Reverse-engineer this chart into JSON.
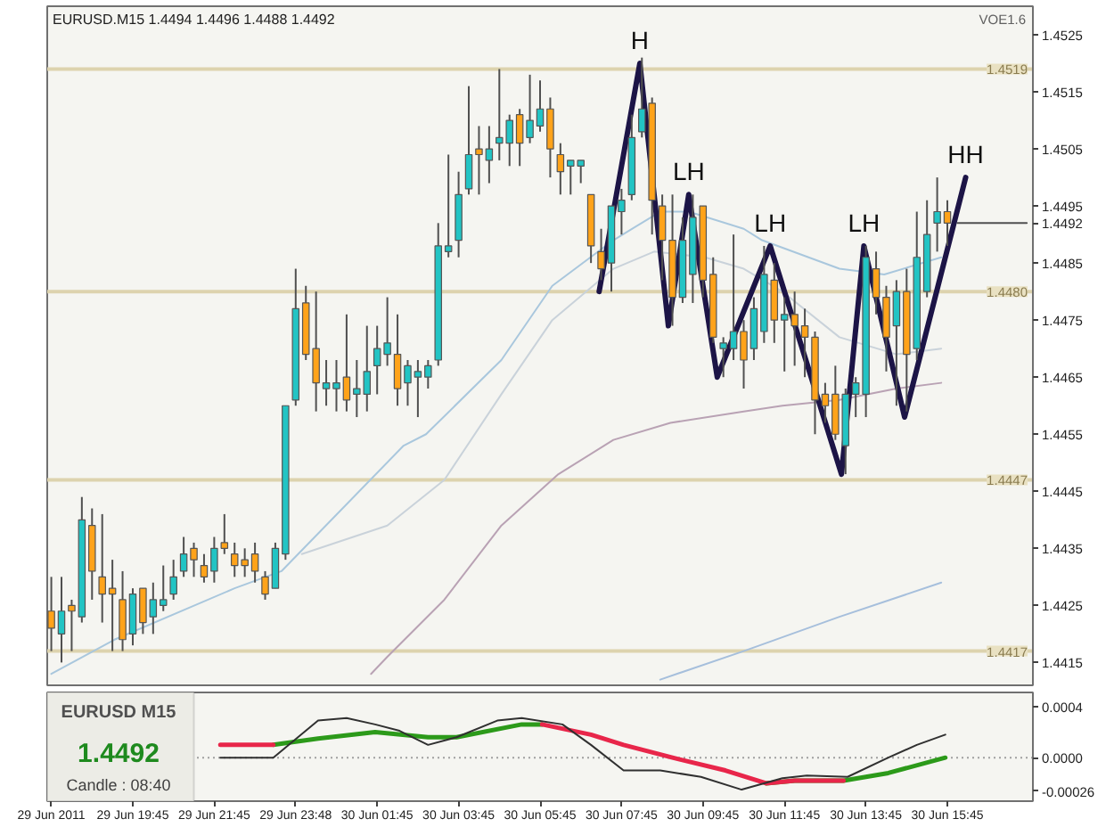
{
  "chart_data": [
    {
      "type": "candlestick",
      "title": "EURUSD.M15 1.4494 1.4496 1.4488 1.4492",
      "x": [
        "2011-06-29T17:45",
        "2011-06-29T18:00",
        "2011-06-29T18:15",
        "2011-06-29T18:30",
        "2011-06-29T18:45",
        "2011-06-29T19:00",
        "2011-06-29T19:15",
        "2011-06-29T19:30",
        "2011-06-29T19:45",
        "2011-06-29T20:00",
        "2011-06-29T20:15",
        "2011-06-29T20:30",
        "2011-06-29T20:45",
        "2011-06-29T21:00",
        "2011-06-29T21:15",
        "2011-06-29T21:30",
        "2011-06-29T21:45",
        "2011-06-29T22:00",
        "2011-06-29T22:15",
        "2011-06-29T22:30",
        "2011-06-29T22:45",
        "2011-06-29T23:00",
        "2011-06-29T23:15",
        "2011-06-29T23:30",
        "2011-06-29T23:45",
        "2011-06-30T00:00",
        "2011-06-30T00:15",
        "2011-06-30T00:30",
        "2011-06-30T00:45",
        "2011-06-30T01:00",
        "2011-06-30T01:15",
        "2011-06-30T01:30",
        "2011-06-30T01:45",
        "2011-06-30T02:00",
        "2011-06-30T02:15",
        "2011-06-30T02:30",
        "2011-06-30T02:45",
        "2011-06-30T03:00",
        "2011-06-30T03:15",
        "2011-06-30T03:30",
        "2011-06-30T03:45",
        "2011-06-30T04:00",
        "2011-06-30T04:15",
        "2011-06-30T04:30",
        "2011-06-30T04:45",
        "2011-06-30T05:00",
        "2011-06-30T05:15",
        "2011-06-30T05:30",
        "2011-06-30T05:45",
        "2011-06-30T06:00",
        "2011-06-30T06:15",
        "2011-06-30T06:30",
        "2011-06-30T06:45",
        "2011-06-30T07:00",
        "2011-06-30T07:15",
        "2011-06-30T07:30",
        "2011-06-30T07:45",
        "2011-06-30T08:00",
        "2011-06-30T08:15",
        "2011-06-30T08:30",
        "2011-06-30T08:45",
        "2011-06-30T09:00",
        "2011-06-30T09:15",
        "2011-06-30T09:30",
        "2011-06-30T09:45",
        "2011-06-30T10:00",
        "2011-06-30T10:15",
        "2011-06-30T10:30",
        "2011-06-30T10:45",
        "2011-06-30T11:00",
        "2011-06-30T11:15",
        "2011-06-30T11:30",
        "2011-06-30T11:45",
        "2011-06-30T12:00",
        "2011-06-30T12:15",
        "2011-06-30T12:30",
        "2011-06-30T12:45",
        "2011-06-30T13:00",
        "2011-06-30T13:15",
        "2011-06-30T13:30",
        "2011-06-30T13:45",
        "2011-06-30T14:00",
        "2011-06-30T14:15",
        "2011-06-30T14:30",
        "2011-06-30T14:45",
        "2011-06-30T15:00",
        "2011-06-30T15:15",
        "2011-06-30T15:30",
        "2011-06-30T15:45"
      ],
      "ohlc": [
        [
          1.4424,
          1.443,
          1.4417,
          1.4421
        ],
        [
          1.442,
          1.443,
          1.4415,
          1.4424
        ],
        [
          1.4425,
          1.4426,
          1.4417,
          1.4424
        ],
        [
          1.4423,
          1.4444,
          1.4422,
          1.444
        ],
        [
          1.4439,
          1.4442,
          1.4426,
          1.4431
        ],
        [
          1.443,
          1.4441,
          1.4422,
          1.4427
        ],
        [
          1.4428,
          1.4433,
          1.4417,
          1.4427
        ],
        [
          1.4426,
          1.4431,
          1.4417,
          1.4419
        ],
        [
          1.442,
          1.4428,
          1.4418,
          1.4427
        ],
        [
          1.4428,
          1.4428,
          1.442,
          1.4422
        ],
        [
          1.4423,
          1.4429,
          1.442,
          1.4426
        ],
        [
          1.4425,
          1.4432,
          1.4424,
          1.4426
        ],
        [
          1.4427,
          1.4433,
          1.4426,
          1.443
        ],
        [
          1.4431,
          1.4437,
          1.443,
          1.4434
        ],
        [
          1.4435,
          1.4436,
          1.443,
          1.4433
        ],
        [
          1.4432,
          1.4434,
          1.4429,
          1.443
        ],
        [
          1.4431,
          1.4437,
          1.4429,
          1.4435
        ],
        [
          1.4436,
          1.4441,
          1.4434,
          1.4435
        ],
        [
          1.4434,
          1.4436,
          1.443,
          1.4432
        ],
        [
          1.4433,
          1.4435,
          1.443,
          1.4432
        ],
        [
          1.4434,
          1.4436,
          1.4429,
          1.4431
        ],
        [
          1.443,
          1.4431,
          1.4426,
          1.4427
        ],
        [
          1.4428,
          1.4436,
          1.4428,
          1.4435
        ],
        [
          1.4434,
          1.446,
          1.4433,
          1.446
        ],
        [
          1.4461,
          1.4484,
          1.446,
          1.4477
        ],
        [
          1.4478,
          1.4481,
          1.4468,
          1.4469
        ],
        [
          1.447,
          1.448,
          1.4459,
          1.4464
        ],
        [
          1.4463,
          1.4468,
          1.446,
          1.4464
        ],
        [
          1.4463,
          1.4468,
          1.4459,
          1.4464
        ],
        [
          1.4465,
          1.4476,
          1.4459,
          1.4461
        ],
        [
          1.4462,
          1.4468,
          1.4458,
          1.4463
        ],
        [
          1.4462,
          1.4474,
          1.4459,
          1.4466
        ],
        [
          1.4467,
          1.4474,
          1.4462,
          1.447
        ],
        [
          1.4469,
          1.4479,
          1.4467,
          1.4471
        ],
        [
          1.4469,
          1.4476,
          1.446,
          1.4463
        ],
        [
          1.4464,
          1.4468,
          1.446,
          1.4467
        ],
        [
          1.4465,
          1.4468,
          1.4458,
          1.4466
        ],
        [
          1.4465,
          1.4468,
          1.4463,
          1.4467
        ],
        [
          1.4468,
          1.4492,
          1.4467,
          1.4488
        ],
        [
          1.4487,
          1.4504,
          1.4486,
          1.4488
        ],
        [
          1.4489,
          1.4501,
          1.4486,
          1.4497
        ],
        [
          1.4498,
          1.4516,
          1.4497,
          1.4504
        ],
        [
          1.4505,
          1.4509,
          1.4497,
          1.4504
        ],
        [
          1.4503,
          1.4509,
          1.4499,
          1.4505
        ],
        [
          1.4506,
          1.4519,
          1.4503,
          1.4507
        ],
        [
          1.4506,
          1.4511,
          1.4502,
          1.451
        ],
        [
          1.4511,
          1.4512,
          1.4502,
          1.4506
        ],
        [
          1.4507,
          1.4518,
          1.4506,
          1.451
        ],
        [
          1.4509,
          1.4517,
          1.4508,
          1.4512
        ],
        [
          1.4512,
          1.4514,
          1.45,
          1.4505
        ],
        [
          1.4504,
          1.4506,
          1.4497,
          1.4501
        ],
        [
          1.4502,
          1.4503,
          1.4497,
          1.4503
        ],
        [
          1.4502,
          1.4503,
          1.4499,
          1.4503
        ],
        [
          1.4497,
          1.4497,
          1.4485,
          1.4488
        ],
        [
          1.4487,
          1.4491,
          1.4482,
          1.4484
        ],
        [
          1.4485,
          1.4495,
          1.448,
          1.4495
        ],
        [
          1.4494,
          1.4498,
          1.449,
          1.4496
        ],
        [
          1.4497,
          1.4511,
          1.4496,
          1.4507
        ],
        [
          1.4508,
          1.4521,
          1.4507,
          1.4512
        ],
        [
          1.4513,
          1.4514,
          1.449,
          1.4496
        ],
        [
          1.4495,
          1.4497,
          1.4482,
          1.4489
        ],
        [
          1.4489,
          1.4497,
          1.4474,
          1.4479
        ],
        [
          1.4479,
          1.4493,
          1.4478,
          1.4489
        ],
        [
          1.4483,
          1.4497,
          1.4478,
          1.4493
        ],
        [
          1.4495,
          1.4495,
          1.4479,
          1.4482
        ],
        [
          1.4483,
          1.4486,
          1.4471,
          1.4472
        ],
        [
          1.447,
          1.4472,
          1.4465,
          1.4471
        ],
        [
          1.447,
          1.449,
          1.4468,
          1.4473
        ],
        [
          1.4473,
          1.4475,
          1.4463,
          1.4468
        ],
        [
          1.447,
          1.4479,
          1.4468,
          1.4477
        ],
        [
          1.4473,
          1.4488,
          1.4471,
          1.4483
        ],
        [
          1.4482,
          1.4485,
          1.4471,
          1.4475
        ],
        [
          1.4475,
          1.4479,
          1.4466,
          1.4476
        ],
        [
          1.4476,
          1.448,
          1.4467,
          1.4474
        ],
        [
          1.4474,
          1.4477,
          1.4465,
          1.4472
        ],
        [
          1.4472,
          1.4473,
          1.4455,
          1.4461
        ],
        [
          1.4462,
          1.4464,
          1.4457,
          1.446
        ],
        [
          1.4462,
          1.4467,
          1.4454,
          1.4455
        ],
        [
          1.4453,
          1.4463,
          1.4448,
          1.4462
        ],
        [
          1.4462,
          1.4465,
          1.4458,
          1.4464
        ],
        [
          1.4462,
          1.4488,
          1.4458,
          1.4486
        ],
        [
          1.4484,
          1.4487,
          1.4476,
          1.4479
        ],
        [
          1.4479,
          1.4481,
          1.4466,
          1.4472
        ],
        [
          1.4474,
          1.4482,
          1.446,
          1.448
        ],
        [
          1.448,
          1.4484,
          1.4459,
          1.4469
        ],
        [
          1.447,
          1.4494,
          1.4468,
          1.4486
        ],
        [
          1.448,
          1.4496,
          1.4479,
          1.449
        ],
        [
          1.4492,
          1.45,
          1.4487,
          1.4494
        ],
        [
          1.4494,
          1.4496,
          1.4488,
          1.4492
        ]
      ],
      "colors": [
        "#ffa31a",
        "#22c4c4",
        "#ffa31a",
        "#22c4c4",
        "#ffa31a",
        "#ffa31a",
        "#ffa31a",
        "#ffa31a",
        "#22c4c4",
        "#ffa31a",
        "#22c4c4",
        "#22c4c4",
        "#22c4c4",
        "#22c4c4",
        "#ffa31a",
        "#ffa31a",
        "#22c4c4",
        "#ffa31a",
        "#ffa31a",
        "#ffa31a",
        "#ffa31a",
        "#ffa31a",
        "#22c4c4",
        "#22c4c4",
        "#22c4c4",
        "#ffa31a",
        "#ffa31a",
        "#22c4c4",
        "#22c4c4",
        "#ffa31a",
        "#22c4c4",
        "#22c4c4",
        "#22c4c4",
        "#22c4c4",
        "#ffa31a",
        "#22c4c4",
        "#22c4c4",
        "#22c4c4",
        "#22c4c4",
        "#22c4c4",
        "#22c4c4",
        "#22c4c4",
        "#ffa31a",
        "#22c4c4",
        "#22c4c4",
        "#22c4c4",
        "#ffa31a",
        "#22c4c4",
        "#22c4c4",
        "#ffa31a",
        "#ffa31a",
        "#22c4c4",
        "#22c4c4",
        "#ffa31a",
        "#ffa31a",
        "#22c4c4",
        "#22c4c4",
        "#22c4c4",
        "#22c4c4",
        "#ffa31a",
        "#ffa31a",
        "#ffa31a",
        "#22c4c4",
        "#22c4c4",
        "#ffa31a",
        "#ffa31a",
        "#22c4c4",
        "#22c4c4",
        "#ffa31a",
        "#22c4c4",
        "#22c4c4",
        "#ffa31a",
        "#22c4c4",
        "#ffa31a",
        "#ffa31a",
        "#ffa31a",
        "#ffa31a",
        "#ffa31a",
        "#22c4c4",
        "#22c4c4",
        "#22c4c4",
        "#ffa31a",
        "#ffa31a",
        "#22c4c4",
        "#ffa31a",
        "#22c4c4",
        "#22c4c4",
        "#22c4c4",
        "#ffa31a"
      ],
      "series": [
        {
          "type": "line",
          "color": "#a9c7dd",
          "x": [
            "2011-06-29T17:45",
            "2011-06-29T19:18",
            "2011-06-29T22:15",
            "2011-06-29T23:24",
            "2011-06-30T02:24",
            "2011-06-30T02:57",
            "2011-06-30T04:48",
            "2011-06-30T06:03",
            "2011-06-30T07:33",
            "2011-06-30T08:42",
            "2011-06-30T09:24",
            "2011-06-30T10:45",
            "2011-06-30T11:12",
            "2011-06-30T13:06",
            "2011-06-30T14:12",
            "2011-06-30T15:36"
          ],
          "values": [
            1.4413,
            1.4419,
            1.4428,
            1.4431,
            1.4453,
            1.4455,
            1.4468,
            1.4481,
            1.4489,
            1.4494,
            1.4494,
            1.4491,
            1.4489,
            1.4484,
            1.4483,
            1.4486
          ]
        },
        {
          "type": "line",
          "color": "#c9d2da",
          "x": [
            "2011-06-29T23:54",
            "2011-06-30T02:00",
            "2011-06-30T03:24",
            "2011-06-30T04:48",
            "2011-06-30T06:03",
            "2011-06-30T07:33",
            "2011-06-30T08:33",
            "2011-06-30T09:48",
            "2011-06-30T10:45",
            "2011-06-30T11:42",
            "2011-06-30T13:06",
            "2011-06-30T14:30",
            "2011-06-30T15:36"
          ],
          "values": [
            1.4434,
            1.4439,
            1.4447,
            1.4462,
            1.4475,
            1.4484,
            1.4487,
            1.4486,
            1.4484,
            1.448,
            1.4472,
            1.4469,
            1.447
          ]
        },
        {
          "type": "line",
          "color": "#b9a2b4",
          "x": [
            "2011-06-30T01:36",
            "2011-06-30T02:00",
            "2011-06-30T03:24",
            "2011-06-30T04:48",
            "2011-06-30T06:12",
            "2011-06-30T07:33",
            "2011-06-30T08:57",
            "2011-06-30T10:45",
            "2011-06-30T11:42",
            "2011-06-30T13:06",
            "2011-06-30T14:30",
            "2011-06-30T15:36"
          ],
          "values": [
            1.4413,
            1.4416,
            1.4426,
            1.4439,
            1.4448,
            1.4454,
            1.4457,
            1.4459,
            1.446,
            1.4461,
            1.4463,
            1.4464
          ]
        },
        {
          "type": "line",
          "color": "#a6bfdc",
          "x": [
            "2011-06-30T08:42",
            "2011-06-30T10:45",
            "2011-06-30T13:06",
            "2011-06-30T15:36"
          ],
          "values": [
            1.4412,
            1.4417,
            1.4423,
            1.4429
          ]
        },
        {
          "type": "line",
          "color": "#505050",
          "x": [
            "2011-06-30T16:00",
            "2011-06-30T17:42"
          ],
          "values": [
            1.4492,
            1.4492
          ]
        },
        {
          "type": "line",
          "color": "#1c1446",
          "x": [
            "2011-06-30T07:12",
            "2011-06-30T08:12",
            "2011-06-30T08:54",
            "2011-06-30T09:24",
            "2011-06-30T10:06",
            "2011-06-30T11:24",
            "2011-06-30T13:09",
            "2011-06-30T13:42",
            "2011-06-30T14:42",
            "2011-06-30T16:12"
          ],
          "values": [
            1.448,
            1.452,
            1.4474,
            1.4497,
            1.4465,
            1.4488,
            1.4448,
            1.4488,
            1.4458,
            1.45
          ]
        }
      ],
      "annotations": [
        {
          "text": "H",
          "x": "2011-06-30T08:12",
          "y": 1.452
        },
        {
          "text": "LH",
          "x": "2011-06-30T09:24",
          "y": 1.4497
        },
        {
          "text": "LH",
          "x": "2011-06-30T11:24",
          "y": 1.4488
        },
        {
          "text": "LH",
          "x": "2011-06-30T13:42",
          "y": 1.4488
        },
        {
          "text": "HH",
          "x": "2011-06-30T16:12",
          "y": 1.45
        },
        "VOE1.6"
      ],
      "ref_lines": [
        {
          "axis": "y",
          "value": 1.4519,
          "label": "1.4519",
          "color": "#ddd3ae"
        },
        {
          "axis": "y",
          "value": 1.448,
          "label": "1.4480",
          "color": "#ddd3ae"
        },
        {
          "axis": "y",
          "value": 1.4447,
          "label": "1.4447",
          "color": "#ddd3ae"
        },
        {
          "axis": "y",
          "value": 1.4417,
          "label": "1.4417",
          "color": "#ddd3ae"
        }
      ],
      "xlim": [
        "2011-06-29T17:39",
        "2011-06-30T17:51"
      ],
      "ylim": [
        1.4411,
        1.453
      ],
      "yticks": [
        1.4525,
        1.4515,
        1.4505,
        1.4495,
        1.4485,
        1.4475,
        1.4465,
        1.4455,
        1.4445,
        1.4435,
        1.4425,
        1.4415,
        {
          "value": 1.4492,
          "label": "1.4492"
        }
      ],
      "tick_labels": "y"
    },
    {
      "type": "line",
      "series": [
        {
          "color": "#2c9a1a",
          "x": [
            "2011-06-29T23:12",
            "2011-06-30T00:18",
            "2011-06-30T01:42",
            "2011-06-30T03:00",
            "2011-06-30T03:42",
            "2011-06-30T05:18",
            "2011-06-30T05:48",
            "2011-06-30T07:00",
            "2011-06-30T07:48",
            "2011-06-30T09:00",
            "2011-06-30T10:18",
            "2011-06-30T11:18",
            "2011-06-30T12:00",
            "2011-06-30T13:12",
            "2011-06-30T14:18",
            "2011-06-30T15:42"
          ],
          "values": [
            0.0001,
            0.00015,
            0.0002,
            0.00016,
            0.00016,
            0.00026,
            0.00026,
            null,
            null,
            null,
            null,
            -0.0002,
            -0.00018,
            -0.00018,
            -0.00012,
            0
          ]
        },
        {
          "color": "#e8264a",
          "x": [
            "2011-06-29T21:54",
            "2011-06-29T23:12",
            "2011-06-30T00:18",
            "2011-06-30T01:42",
            "2011-06-30T03:00",
            "2011-06-30T03:42",
            "2011-06-30T05:18",
            "2011-06-30T05:48",
            "2011-06-30T07:00",
            "2011-06-30T07:48",
            "2011-06-30T09:00",
            "2011-06-30T10:18",
            "2011-06-30T11:18",
            "2011-06-30T12:00",
            "2011-06-30T13:12"
          ],
          "values": [
            0.0001,
            0.0001,
            null,
            null,
            null,
            null,
            null,
            0.00026,
            0.00018,
            0.0001,
            0,
            -0.0001,
            -0.0002,
            -0.00018,
            -0.00018
          ]
        },
        {
          "color": "#303030",
          "x": [
            "2011-06-29T21:54",
            "2011-06-29T23:12",
            "2011-06-30T00:18",
            "2011-06-30T01:00",
            "2011-06-30T01:42",
            "2011-06-30T02:18",
            "2011-06-30T03:00",
            "2011-06-30T03:42",
            "2011-06-30T04:42",
            "2011-06-30T05:18",
            "2011-06-30T06:18",
            "2011-06-30T07:00",
            "2011-06-30T07:48",
            "2011-06-30T08:42",
            "2011-06-30T09:42",
            "2011-06-30T10:42",
            "2011-06-30T11:42",
            "2011-06-30T12:18",
            "2011-06-30T13:18",
            "2011-06-30T14:18",
            "2011-06-30T15:00",
            "2011-06-30T15:42"
          ],
          "values": [
            0,
            0,
            0.00029,
            0.00031,
            0.00026,
            0.00021,
            0.0001,
            0.00016,
            0.00029,
            0.00031,
            0.00026,
            0.0001,
            -0.0001,
            -0.0001,
            -0.00015,
            -0.00025,
            -0.00016,
            -0.00014,
            -0.00015,
            0,
            0.0001,
            0.00018
          ]
        }
      ],
      "ref_lines": [
        {
          "axis": "y",
          "value": 0,
          "color": "#a0a0a0",
          "line_style": "dotted"
        }
      ],
      "annotations": [
        "EURUSD M15",
        "1.4492",
        "Candle : 08:40"
      ],
      "xlim": [
        "2011-06-29T17:39",
        "2011-06-30T17:51"
      ],
      "ylim": [
        -0.00034,
        0.00051
      ],
      "xticks": [
        {
          "value": "2011-06-29T17:45",
          "label": "29 Jun 2011"
        },
        {
          "value": "2011-06-29T19:45",
          "label": "29 Jun 19:45"
        },
        {
          "value": "2011-06-29T21:45",
          "label": "29 Jun 21:45"
        },
        {
          "value": "2011-06-29T23:45",
          "label": "29 Jun 23:48"
        },
        {
          "value": "2011-06-30T01:45",
          "label": "30 Jun 01:45"
        },
        {
          "value": "2011-06-30T03:45",
          "label": "30 Jun 03:45"
        },
        {
          "value": "2011-06-30T05:45",
          "label": "30 Jun 05:45"
        },
        {
          "value": "2011-06-30T07:45",
          "label": "30 Jun 07:45"
        },
        {
          "value": "2011-06-30T09:45",
          "label": "30 Jun 09:45"
        },
        {
          "value": "2011-06-30T11:45",
          "label": "30 Jun 11:45"
        },
        {
          "value": "2011-06-30T13:45",
          "label": "30 Jun 13:45"
        },
        {
          "value": "2011-06-30T15:45",
          "label": "30 Jun 15:45"
        }
      ],
      "yticks": [
        0.0004,
        {
          "value": 0,
          "label": "0.0000"
        },
        -0.00026
      ]
    }
  ]
}
